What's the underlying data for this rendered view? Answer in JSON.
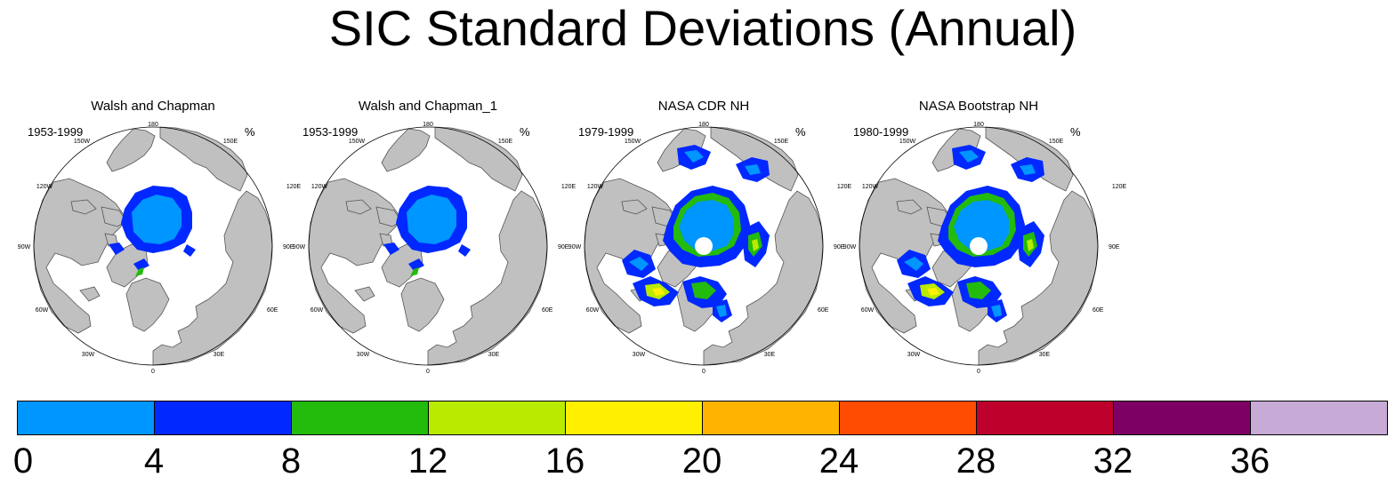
{
  "title": "SIC Standard Deviations (Annual)",
  "panels": [
    {
      "title": "Walsh and Chapman",
      "years": "1953-1999",
      "units": "%",
      "variant": "walsh"
    },
    {
      "title": "Walsh and Chapman_1",
      "years": "1953-1999",
      "units": "%",
      "variant": "walsh"
    },
    {
      "title": "NASA CDR NH",
      "years": "1979-1999",
      "units": "%",
      "variant": "nasa"
    },
    {
      "title": "NASA Bootstrap NH",
      "years": "1980-1999",
      "units": "%",
      "variant": "nasa"
    }
  ],
  "longitude_labels": {
    "top": "180",
    "top_right": "150E",
    "right_upper": "120E",
    "right": "90E",
    "right_lower": "60E",
    "bottom_right": "30E",
    "bottom": "0",
    "bottom_left": "30W",
    "left_lower": "60W",
    "left": "90W",
    "left_upper": "120W",
    "top_left": "150W"
  },
  "colors": {
    "land": "#c0c0c0",
    "coast": "#555555",
    "bins": [
      "#0096ff",
      "#0028ff",
      "#23bb0c",
      "#b9ea00",
      "#fff000",
      "#ffb400",
      "#ff4c00",
      "#be002d",
      "#7d0064",
      "#c8aad7"
    ]
  },
  "colorbar": {
    "ticks": [
      "0",
      "4",
      "8",
      "12",
      "16",
      "20",
      "24",
      "28",
      "32",
      "36"
    ]
  }
}
